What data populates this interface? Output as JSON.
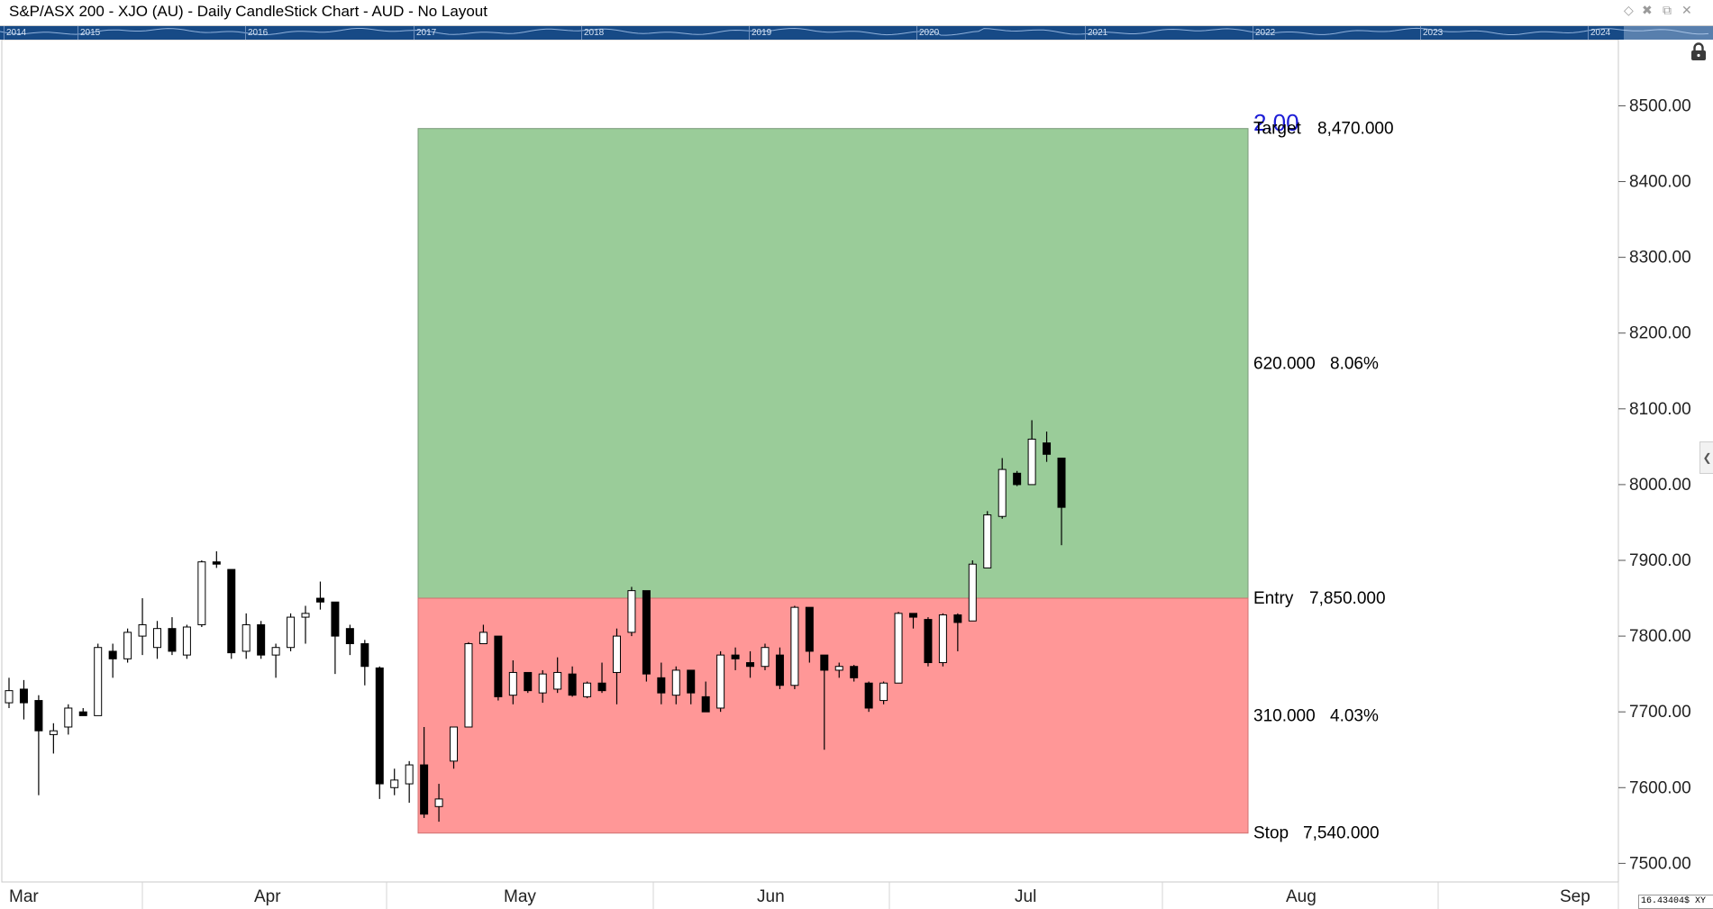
{
  "window": {
    "title": "S&P/ASX 200 - XJO (AU) - Daily CandleStick Chart - AUD - No Layout",
    "icons": [
      "diamond-icon",
      "pin-icon",
      "restore-icon",
      "close-icon"
    ]
  },
  "overview": {
    "years": [
      "2014",
      "2015",
      "2016",
      "2017",
      "2018",
      "2019",
      "2020",
      "2021",
      "2022",
      "2023",
      "2024"
    ],
    "background": "#174a86"
  },
  "colors": {
    "profit_zone": "#9acc99",
    "loss_zone": "#ff9797",
    "zone_border": "#7a9a7a",
    "ratio_text": "#1d1dd6",
    "candle": "#000000"
  },
  "chart_data": {
    "type": "candlestick",
    "title": "S&P/ASX 200 - XJO (AU) - Daily CandleStick Chart - AUD - No Layout",
    "ylim": [
      7460,
      8560
    ],
    "y_ticks": [
      8500,
      8400,
      8300,
      8200,
      8100,
      8000,
      7900,
      7800,
      7700,
      7600,
      7500
    ],
    "y_tick_labels": [
      "8500.00",
      "8400.00",
      "8300.00",
      "8200.00",
      "8100.00",
      "8000.00",
      "7900.00",
      "7800.00",
      "7700.00",
      "7600.00",
      "7500.00"
    ],
    "x_period_labels": [
      "Mar",
      "Apr",
      "May",
      "Jun",
      "Jul",
      "Aug",
      "Sep"
    ],
    "risk_reward": {
      "ratio": "2.00",
      "target_label": "Target",
      "target_value": "8,470.000",
      "target": 8470,
      "reward_points": "620.000",
      "reward_pct": "8.06%",
      "entry_label": "Entry",
      "entry_value": "7,850.000",
      "entry": 7850,
      "risk_points": "310.000",
      "risk_pct": "4.03%",
      "stop_label": "Stop",
      "stop_value": "7,540.000",
      "stop": 7540
    },
    "candles": [
      {
        "o": 7712,
        "h": 7745,
        "l": 7705,
        "c": 7728
      },
      {
        "o": 7730,
        "h": 7742,
        "l": 7690,
        "c": 7712
      },
      {
        "o": 7715,
        "h": 7722,
        "l": 7590,
        "c": 7675
      },
      {
        "o": 7670,
        "h": 7685,
        "l": 7645,
        "c": 7675
      },
      {
        "o": 7680,
        "h": 7710,
        "l": 7670,
        "c": 7705
      },
      {
        "o": 7700,
        "h": 7705,
        "l": 7695,
        "c": 7695
      },
      {
        "o": 7695,
        "h": 7790,
        "l": 7695,
        "c": 7785
      },
      {
        "o": 7780,
        "h": 7790,
        "l": 7745,
        "c": 7770
      },
      {
        "o": 7770,
        "h": 7810,
        "l": 7765,
        "c": 7805
      },
      {
        "o": 7800,
        "h": 7850,
        "l": 7775,
        "c": 7815
      },
      {
        "o": 7785,
        "h": 7820,
        "l": 7770,
        "c": 7810
      },
      {
        "o": 7810,
        "h": 7825,
        "l": 7775,
        "c": 7780
      },
      {
        "o": 7775,
        "h": 7815,
        "l": 7770,
        "c": 7812
      },
      {
        "o": 7815,
        "h": 7900,
        "l": 7812,
        "c": 7898
      },
      {
        "o": 7898,
        "h": 7912,
        "l": 7890,
        "c": 7895
      },
      {
        "o": 7888,
        "h": 7888,
        "l": 7770,
        "c": 7778
      },
      {
        "o": 7780,
        "h": 7830,
        "l": 7770,
        "c": 7815
      },
      {
        "o": 7815,
        "h": 7820,
        "l": 7770,
        "c": 7775
      },
      {
        "o": 7775,
        "h": 7790,
        "l": 7745,
        "c": 7785
      },
      {
        "o": 7785,
        "h": 7830,
        "l": 7780,
        "c": 7825
      },
      {
        "o": 7825,
        "h": 7840,
        "l": 7790,
        "c": 7830
      },
      {
        "o": 7850,
        "h": 7872,
        "l": 7835,
        "c": 7845
      },
      {
        "o": 7845,
        "h": 7845,
        "l": 7750,
        "c": 7800
      },
      {
        "o": 7810,
        "h": 7815,
        "l": 7775,
        "c": 7790
      },
      {
        "o": 7790,
        "h": 7795,
        "l": 7735,
        "c": 7760
      },
      {
        "o": 7758,
        "h": 7760,
        "l": 7585,
        "c": 7605
      },
      {
        "o": 7600,
        "h": 7625,
        "l": 7590,
        "c": 7610
      },
      {
        "o": 7605,
        "h": 7635,
        "l": 7580,
        "c": 7630
      },
      {
        "o": 7630,
        "h": 7680,
        "l": 7560,
        "c": 7565
      },
      {
        "o": 7575,
        "h": 7605,
        "l": 7555,
        "c": 7585
      },
      {
        "o": 7635,
        "h": 7680,
        "l": 7625,
        "c": 7680
      },
      {
        "o": 7680,
        "h": 7792,
        "l": 7680,
        "c": 7790
      },
      {
        "o": 7790,
        "h": 7815,
        "l": 7790,
        "c": 7805
      },
      {
        "o": 7800,
        "h": 7800,
        "l": 7715,
        "c": 7720
      },
      {
        "o": 7722,
        "h": 7768,
        "l": 7710,
        "c": 7752
      },
      {
        "o": 7752,
        "h": 7752,
        "l": 7725,
        "c": 7728
      },
      {
        "o": 7725,
        "h": 7755,
        "l": 7712,
        "c": 7750
      },
      {
        "o": 7730,
        "h": 7772,
        "l": 7725,
        "c": 7752
      },
      {
        "o": 7750,
        "h": 7760,
        "l": 7720,
        "c": 7722
      },
      {
        "o": 7720,
        "h": 7740,
        "l": 7718,
        "c": 7738
      },
      {
        "o": 7738,
        "h": 7765,
        "l": 7725,
        "c": 7728
      },
      {
        "o": 7752,
        "h": 7810,
        "l": 7710,
        "c": 7800
      },
      {
        "o": 7805,
        "h": 7865,
        "l": 7800,
        "c": 7860
      },
      {
        "o": 7860,
        "h": 7860,
        "l": 7740,
        "c": 7750
      },
      {
        "o": 7745,
        "h": 7765,
        "l": 7710,
        "c": 7725
      },
      {
        "o": 7722,
        "h": 7760,
        "l": 7710,
        "c": 7755
      },
      {
        "o": 7755,
        "h": 7755,
        "l": 7710,
        "c": 7725
      },
      {
        "o": 7720,
        "h": 7740,
        "l": 7700,
        "c": 7700
      },
      {
        "o": 7705,
        "h": 7780,
        "l": 7700,
        "c": 7775
      },
      {
        "o": 7775,
        "h": 7785,
        "l": 7755,
        "c": 7770
      },
      {
        "o": 7765,
        "h": 7780,
        "l": 7745,
        "c": 7760
      },
      {
        "o": 7760,
        "h": 7790,
        "l": 7755,
        "c": 7785
      },
      {
        "o": 7775,
        "h": 7785,
        "l": 7730,
        "c": 7735
      },
      {
        "o": 7735,
        "h": 7840,
        "l": 7730,
        "c": 7838
      },
      {
        "o": 7838,
        "h": 7838,
        "l": 7765,
        "c": 7780
      },
      {
        "o": 7775,
        "h": 7775,
        "l": 7650,
        "c": 7755
      },
      {
        "o": 7755,
        "h": 7765,
        "l": 7745,
        "c": 7760
      },
      {
        "o": 7760,
        "h": 7762,
        "l": 7740,
        "c": 7745
      },
      {
        "o": 7738,
        "h": 7740,
        "l": 7700,
        "c": 7705
      },
      {
        "o": 7715,
        "h": 7740,
        "l": 7710,
        "c": 7738
      },
      {
        "o": 7738,
        "h": 7832,
        "l": 7738,
        "c": 7830
      },
      {
        "o": 7830,
        "h": 7830,
        "l": 7810,
        "c": 7825
      },
      {
        "o": 7822,
        "h": 7825,
        "l": 7760,
        "c": 7765
      },
      {
        "o": 7765,
        "h": 7830,
        "l": 7760,
        "c": 7828
      },
      {
        "o": 7828,
        "h": 7830,
        "l": 7780,
        "c": 7818
      },
      {
        "o": 7820,
        "h": 7900,
        "l": 7820,
        "c": 7895
      },
      {
        "o": 7890,
        "h": 7965,
        "l": 7890,
        "c": 7960
      },
      {
        "o": 7958,
        "h": 8035,
        "l": 7955,
        "c": 8020
      },
      {
        "o": 8015,
        "h": 8018,
        "l": 7998,
        "c": 8000
      },
      {
        "o": 8000,
        "h": 8085,
        "l": 8000,
        "c": 8060
      },
      {
        "o": 8055,
        "h": 8070,
        "l": 8030,
        "c": 8040
      },
      {
        "o": 8035,
        "h": 8035,
        "l": 7920,
        "c": 7970
      }
    ]
  },
  "status": {
    "readout": "16.43404$ XY"
  }
}
